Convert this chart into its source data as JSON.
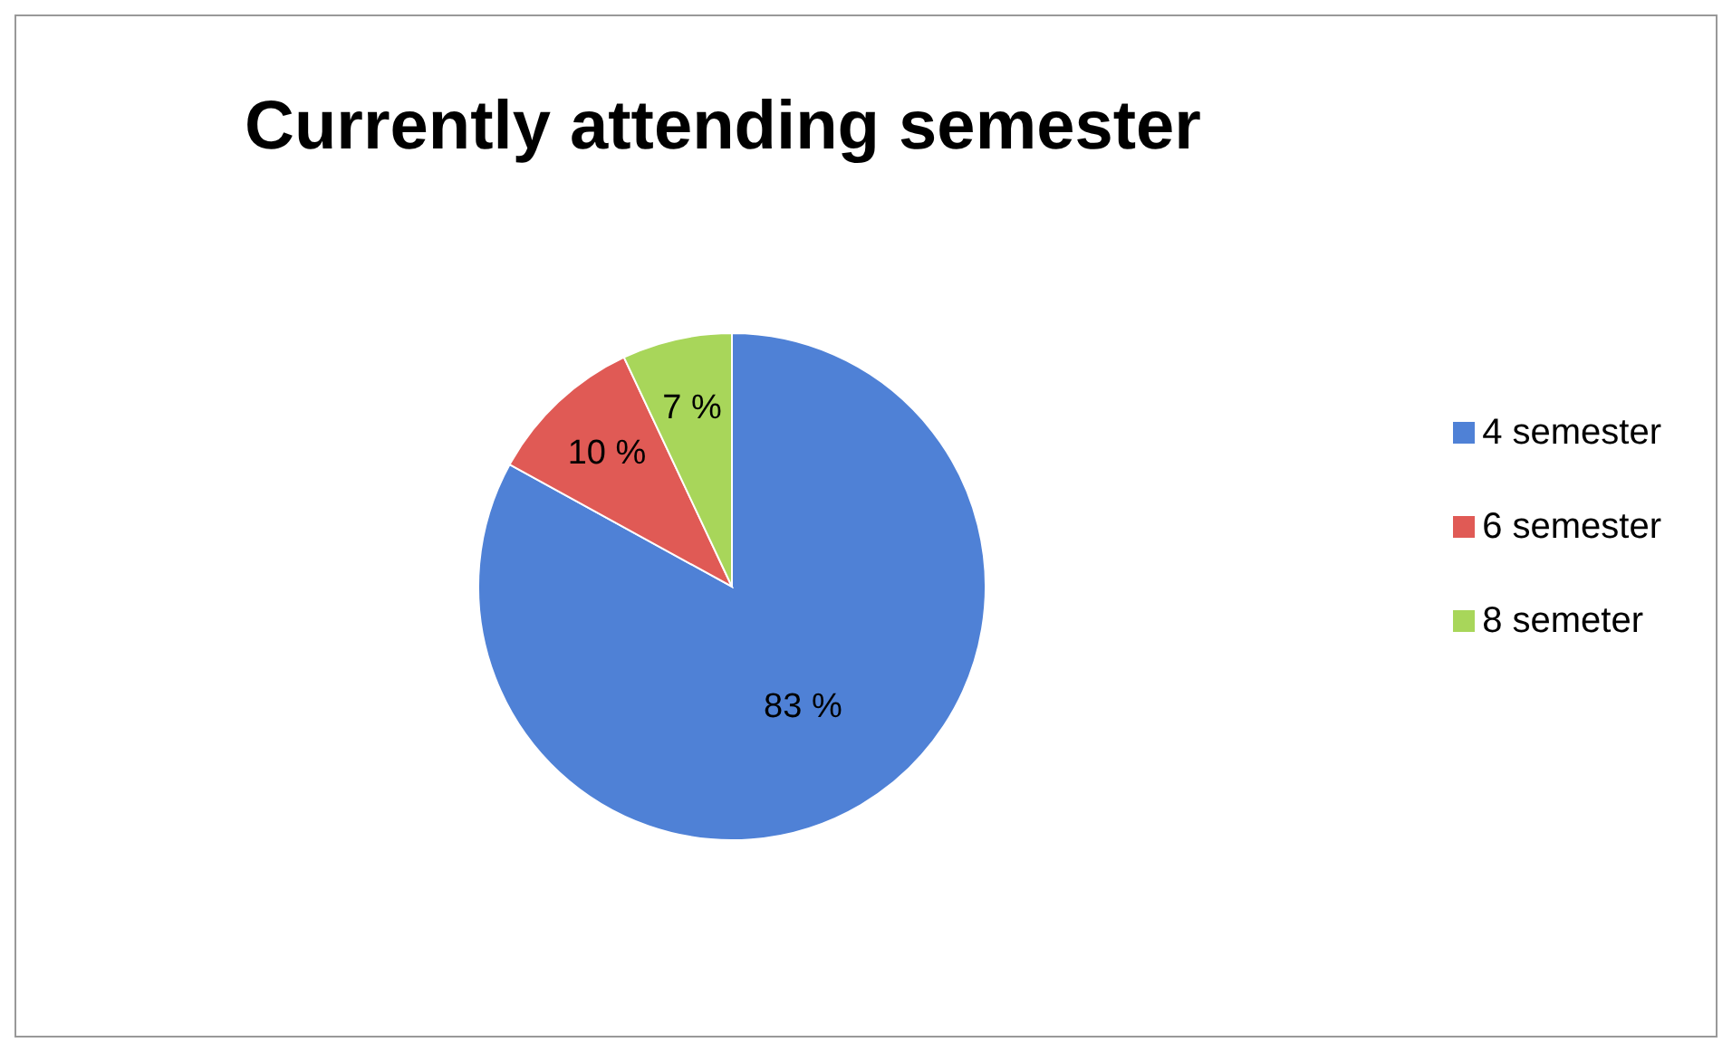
{
  "chart_data": {
    "type": "pie",
    "title": "Currently attending semester",
    "categories": [
      "4 semester",
      "6 semester",
      "8 semeter"
    ],
    "values": [
      83,
      10,
      7
    ],
    "value_labels": [
      "83 %",
      "10 %",
      "7 %"
    ],
    "colors": [
      "#4f81d6",
      "#e05a55",
      "#a8d65a"
    ],
    "legend": "right"
  }
}
